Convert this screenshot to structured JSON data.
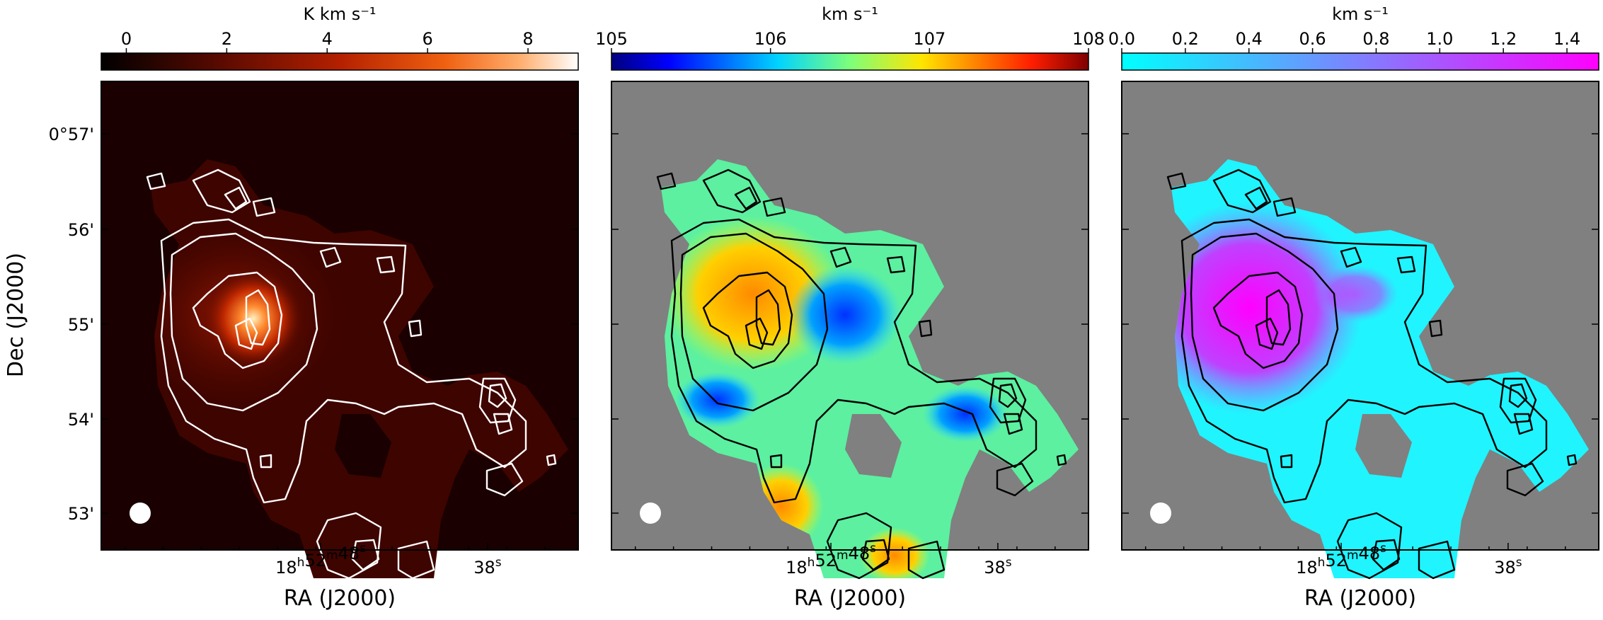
{
  "figure": {
    "ylabel": "Dec (J2000)",
    "yticks": [
      "0°57'",
      "56'",
      "55'",
      "54'",
      "53'"
    ]
  },
  "chart_data": [
    {
      "type": "heatmap",
      "panel": "integrated-intensity",
      "colormap": "gist_heat",
      "colorbar_label": "K km s⁻¹",
      "colorbar_range": [
        -0.5,
        9.0
      ],
      "colorbar_ticks": [
        "0",
        "2",
        "4",
        "6",
        "8"
      ],
      "colorbar_tick_values": [
        0,
        2,
        4,
        6,
        8
      ],
      "xlabel": "RA (J2000)",
      "xticks": [
        {
          "h": "18",
          "hsup": "h",
          "m": "52",
          "msup": "m",
          "s": "48",
          "ssup": "s"
        },
        {
          "s": "38",
          "ssup": "s"
        }
      ],
      "background": "#1a0000",
      "contour_color": "#ffffff",
      "peak_value": 8.5
    },
    {
      "type": "heatmap",
      "panel": "velocity",
      "colormap": "jet",
      "colorbar_label": "km s⁻¹",
      "colorbar_range": [
        105,
        108
      ],
      "colorbar_ticks": [
        "105",
        "106",
        "107",
        "108"
      ],
      "colorbar_tick_values": [
        105,
        106,
        107,
        108
      ],
      "xlabel": "RA (J2000)",
      "xticks": [
        {
          "h": "18",
          "hsup": "h",
          "m": "52",
          "msup": "m",
          "s": "48",
          "ssup": "s"
        },
        {
          "s": "38",
          "ssup": "s"
        }
      ],
      "background": "#808080",
      "contour_color": "#000000"
    },
    {
      "type": "heatmap",
      "panel": "velocity-dispersion",
      "colormap": "cool",
      "colorbar_label": "km s⁻¹",
      "colorbar_range": [
        0.0,
        1.5
      ],
      "colorbar_ticks": [
        "0.0",
        "0.2",
        "0.4",
        "0.6",
        "0.8",
        "1.0",
        "1.2",
        "1.4"
      ],
      "colorbar_tick_values": [
        0.0,
        0.2,
        0.4,
        0.6,
        0.8,
        1.0,
        1.2,
        1.4
      ],
      "xlabel": "RA (J2000)",
      "xticks": [
        {
          "h": "18",
          "hsup": "h",
          "m": "52",
          "msup": "m",
          "s": "48",
          "ssup": "s"
        },
        {
          "s": "38",
          "ssup": "s"
        }
      ],
      "background": "#808080",
      "contour_color": "#000000"
    }
  ]
}
